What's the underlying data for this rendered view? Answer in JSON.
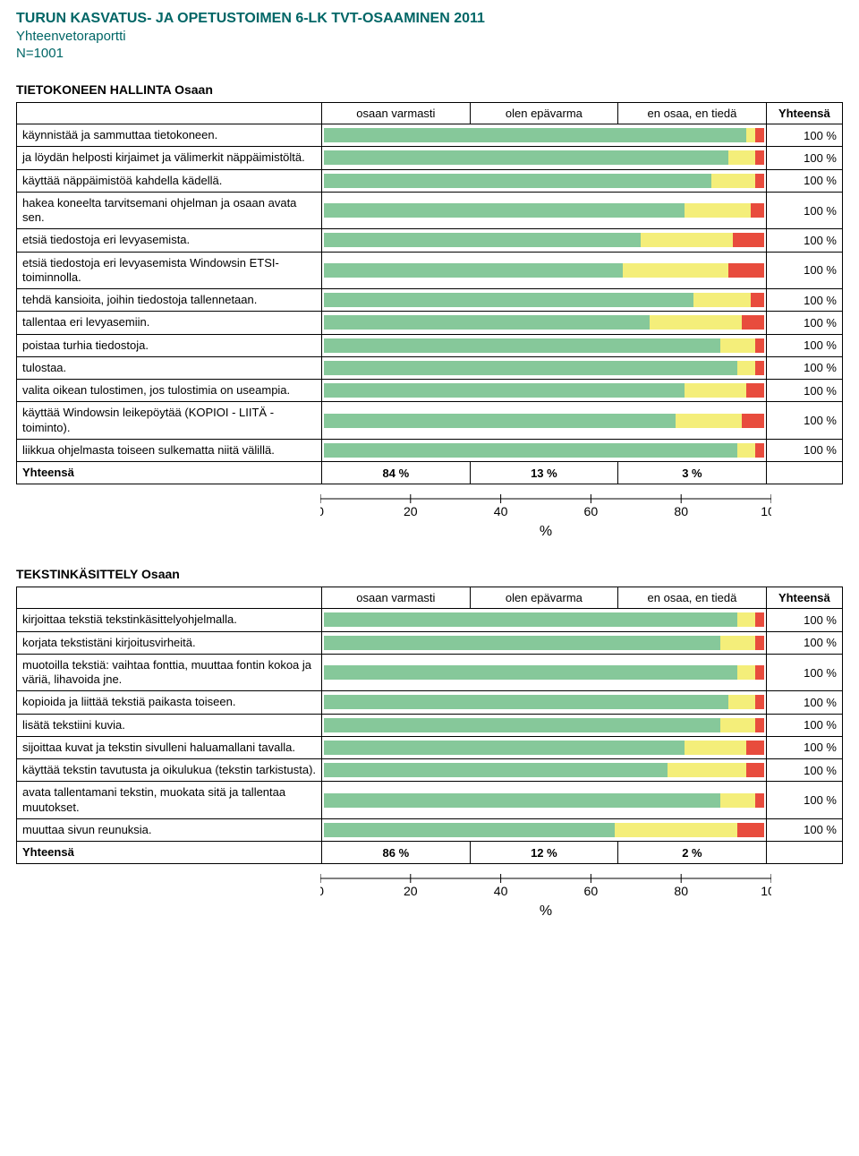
{
  "header": {
    "title": "TURUN KASVATUS- JA OPETUSTOIMEN 6-LK TVT-OSAAMINEN 2011",
    "subtitle": "Yhteenvetoraportti",
    "n": "N=1001"
  },
  "colors": {
    "title": "#006666",
    "seg_a": "#86c89a",
    "seg_b": "#f4ee7a",
    "seg_c": "#e84c3d",
    "border": "#000000"
  },
  "columns": {
    "c1": "osaan varmasti",
    "c2": "olen epävarma",
    "c3": "en osaa, en tiedä",
    "total": "Yhteensä"
  },
  "axis": {
    "ticks": [
      "0",
      "20",
      "40",
      "60",
      "80",
      "100"
    ],
    "label": "%"
  },
  "sections": [
    {
      "title": "TIETOKONEEN HALLINTA Osaan",
      "rows": [
        {
          "label": "käynnistää ja sammuttaa tietokoneen.",
          "a": 96,
          "b": 2,
          "c": 2,
          "total": "100 %"
        },
        {
          "label": "ja löydän helposti kirjaimet ja välimerkit näppäimistöltä.",
          "a": 92,
          "b": 6,
          "c": 2,
          "total": "100 %"
        },
        {
          "label": "käyttää näppäimistöä kahdella kädellä.",
          "a": 88,
          "b": 10,
          "c": 2,
          "total": "100 %"
        },
        {
          "label": "hakea koneelta tarvitsemani ohjelman ja osaan avata sen.",
          "a": 82,
          "b": 15,
          "c": 3,
          "total": "100 %"
        },
        {
          "label": "etsiä tiedostoja eri levyasemista.",
          "a": 72,
          "b": 21,
          "c": 7,
          "total": "100 %"
        },
        {
          "label": "etsiä tiedostoja eri levyasemista Windowsin ETSI-toiminnolla.",
          "a": 68,
          "b": 24,
          "c": 8,
          "total": "100 %"
        },
        {
          "label": "tehdä kansioita, joihin tiedostoja tallennetaan.",
          "a": 84,
          "b": 13,
          "c": 3,
          "total": "100 %"
        },
        {
          "label": "tallentaa eri levyasemiin.",
          "a": 74,
          "b": 21,
          "c": 5,
          "total": "100 %"
        },
        {
          "label": "poistaa turhia tiedostoja.",
          "a": 90,
          "b": 8,
          "c": 2,
          "total": "100 %"
        },
        {
          "label": "tulostaa.",
          "a": 94,
          "b": 4,
          "c": 2,
          "total": "100 %"
        },
        {
          "label": "valita oikean tulostimen, jos tulostimia on useampia.",
          "a": 82,
          "b": 14,
          "c": 4,
          "total": "100 %"
        },
        {
          "label": "käyttää Windowsin leikepöytää (KOPIOI - LIITÄ -toiminto).",
          "a": 80,
          "b": 15,
          "c": 5,
          "total": "100 %"
        },
        {
          "label": "liikkua ohjelmasta toiseen sulkematta niitä välillä.",
          "a": 94,
          "b": 4,
          "c": 2,
          "total": "100 %"
        }
      ],
      "summary": {
        "label": "Yhteensä",
        "c1": "84 %",
        "c2": "13 %",
        "c3": "3 %"
      }
    },
    {
      "title": "TEKSTINKÄSITTELY Osaan",
      "rows": [
        {
          "label": "kirjoittaa tekstiä tekstinkäsittelyohjelmalla.",
          "a": 94,
          "b": 4,
          "c": 2,
          "total": "100 %"
        },
        {
          "label": "korjata tekstistäni kirjoitusvirheitä.",
          "a": 90,
          "b": 8,
          "c": 2,
          "total": "100 %"
        },
        {
          "label": "muotoilla tekstiä: vaihtaa fonttia, muuttaa fontin kokoa ja väriä, lihavoida jne.",
          "a": 94,
          "b": 4,
          "c": 2,
          "total": "100 %"
        },
        {
          "label": "kopioida ja liittää tekstiä paikasta toiseen.",
          "a": 92,
          "b": 6,
          "c": 2,
          "total": "100 %"
        },
        {
          "label": "lisätä tekstiini kuvia.",
          "a": 90,
          "b": 8,
          "c": 2,
          "total": "100 %"
        },
        {
          "label": "sijoittaa kuvat ja tekstin sivulleni haluamallani tavalla.",
          "a": 82,
          "b": 14,
          "c": 4,
          "total": "100 %"
        },
        {
          "label": "käyttää tekstin tavutusta ja oikulukua (tekstin tarkistusta).",
          "a": 78,
          "b": 18,
          "c": 4,
          "total": "100 %"
        },
        {
          "label": "avata tallentamani tekstin, muokata sitä ja tallentaa muutokset.",
          "a": 90,
          "b": 8,
          "c": 2,
          "total": "100 %"
        },
        {
          "label": "muuttaa sivun reunuksia.",
          "a": 66,
          "b": 28,
          "c": 6,
          "total": "100 %"
        }
      ],
      "summary": {
        "label": "Yhteensä",
        "c1": "86 %",
        "c2": "12 %",
        "c3": "2 %"
      }
    }
  ]
}
